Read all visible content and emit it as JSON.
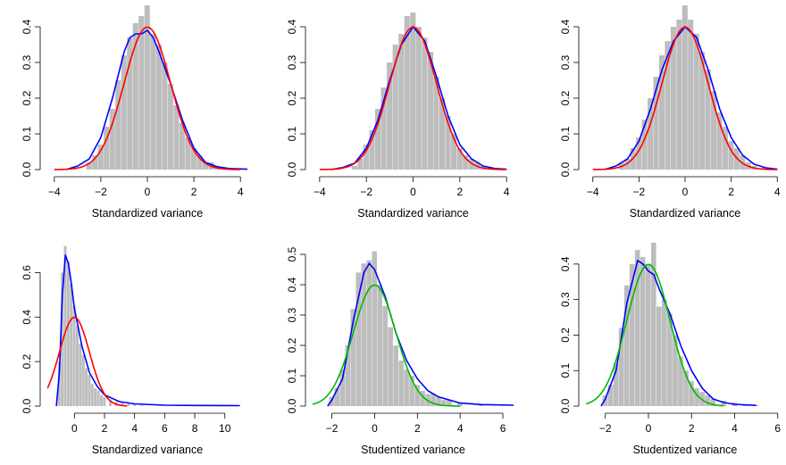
{
  "colors": {
    "histogram": "#bdbdbd",
    "density_estimate": "#0000ff",
    "normal_reference": "#ff0000",
    "normal_reference_studentized": "#00bb00",
    "axis": "#000000"
  },
  "chart_data": [
    {
      "type": "histogram",
      "xlabel": "Standardized variance",
      "xlim": [
        -4.3,
        4.3
      ],
      "ylim": [
        0,
        0.45
      ],
      "xticks": [
        -4,
        -2,
        0,
        2,
        4
      ],
      "yticks": [
        0.0,
        0.1,
        0.2,
        0.3,
        0.4
      ],
      "xtick_labels": [
        "−4",
        "−2",
        "0",
        "2",
        "4"
      ],
      "ytick_labels": [
        "0.0",
        "0.1",
        "0.2",
        "0.3",
        "0.4"
      ],
      "hist": {
        "x": [
          -2.5,
          -2.25,
          -2.0,
          -1.75,
          -1.5,
          -1.25,
          -1.0,
          -0.75,
          -0.5,
          -0.25,
          0.0,
          0.25,
          0.5,
          0.75,
          1.0,
          1.25,
          1.5,
          1.75,
          2.0,
          2.25,
          2.5,
          2.75,
          3.0,
          3.5,
          4.0
        ],
        "y": [
          0.02,
          0.04,
          0.07,
          0.12,
          0.17,
          0.25,
          0.32,
          0.37,
          0.41,
          0.43,
          0.46,
          0.38,
          0.35,
          0.3,
          0.24,
          0.18,
          0.13,
          0.09,
          0.06,
          0.04,
          0.02,
          0.02,
          0.01,
          0.005,
          0.003
        ]
      },
      "series": [
        {
          "kind": "density",
          "color": "density_estimate",
          "x": [
            -3.5,
            -3.0,
            -2.5,
            -2.0,
            -1.5,
            -1.0,
            -0.75,
            -0.5,
            -0.25,
            0.0,
            0.25,
            0.5,
            1.0,
            1.5,
            2.0,
            2.5,
            3.0,
            3.5,
            4.3
          ],
          "y": [
            0.0,
            0.01,
            0.03,
            0.09,
            0.2,
            0.33,
            0.37,
            0.38,
            0.38,
            0.39,
            0.37,
            0.33,
            0.24,
            0.14,
            0.06,
            0.02,
            0.008,
            0.003,
            0.001
          ]
        },
        {
          "kind": "normal",
          "color": "normal_reference",
          "mean": 0,
          "sd": 1,
          "from": -4,
          "to": 4
        }
      ]
    },
    {
      "type": "histogram",
      "xlabel": "Standardized variance",
      "xlim": [
        -4.3,
        4.3
      ],
      "ylim": [
        0,
        0.45
      ],
      "xticks": [
        -4,
        -2,
        0,
        2,
        4
      ],
      "yticks": [
        0.0,
        0.1,
        0.2,
        0.3,
        0.4
      ],
      "xtick_labels": [
        "−4",
        "−2",
        "0",
        "2",
        "4"
      ],
      "ytick_labels": [
        "0.0",
        "0.1",
        "0.2",
        "0.3",
        "0.4"
      ],
      "hist": {
        "x": [
          -2.5,
          -2.25,
          -2.0,
          -1.75,
          -1.5,
          -1.25,
          -1.0,
          -0.75,
          -0.5,
          -0.25,
          0.0,
          0.25,
          0.5,
          0.75,
          1.0,
          1.25,
          1.5,
          1.75,
          2.0,
          2.25,
          2.5,
          2.75,
          3.0,
          3.25,
          3.5
        ],
        "y": [
          0.01,
          0.03,
          0.07,
          0.11,
          0.17,
          0.23,
          0.3,
          0.35,
          0.38,
          0.43,
          0.44,
          0.4,
          0.37,
          0.33,
          0.26,
          0.2,
          0.15,
          0.1,
          0.06,
          0.04,
          0.03,
          0.02,
          0.01,
          0.008,
          0.005
        ]
      },
      "series": [
        {
          "kind": "density",
          "color": "density_estimate",
          "x": [
            -3.5,
            -3.0,
            -2.5,
            -2.0,
            -1.5,
            -1.0,
            -0.5,
            0.0,
            0.5,
            1.0,
            1.5,
            2.0,
            2.5,
            3.0,
            3.5,
            4.0
          ],
          "y": [
            0.0,
            0.006,
            0.018,
            0.06,
            0.14,
            0.25,
            0.35,
            0.4,
            0.36,
            0.26,
            0.15,
            0.07,
            0.03,
            0.01,
            0.003,
            0.001
          ]
        },
        {
          "kind": "normal",
          "color": "normal_reference",
          "mean": 0,
          "sd": 1,
          "from": -4,
          "to": 4
        }
      ]
    },
    {
      "type": "histogram",
      "xlabel": "Standardized variance",
      "xlim": [
        -4.3,
        4.3
      ],
      "ylim": [
        0,
        0.45
      ],
      "xticks": [
        -4,
        -2,
        0,
        2,
        4
      ],
      "yticks": [
        0.0,
        0.1,
        0.2,
        0.3,
        0.4
      ],
      "xtick_labels": [
        "−4",
        "−2",
        "0",
        "2",
        "4"
      ],
      "ytick_labels": [
        "0.0",
        "0.1",
        "0.2",
        "0.3",
        "0.4"
      ],
      "hist": {
        "x": [
          -2.75,
          -2.5,
          -2.25,
          -2.0,
          -1.75,
          -1.5,
          -1.25,
          -1.0,
          -0.75,
          -0.5,
          -0.25,
          0.0,
          0.25,
          0.5,
          0.75,
          1.0,
          1.25,
          1.5,
          1.75,
          2.0,
          2.25,
          2.5,
          2.75,
          3.0,
          3.5
        ],
        "y": [
          0.02,
          0.03,
          0.06,
          0.09,
          0.14,
          0.2,
          0.26,
          0.32,
          0.36,
          0.4,
          0.42,
          0.46,
          0.42,
          0.38,
          0.33,
          0.28,
          0.22,
          0.16,
          0.12,
          0.08,
          0.06,
          0.04,
          0.02,
          0.01,
          0.005
        ]
      },
      "series": [
        {
          "kind": "density",
          "color": "density_estimate",
          "x": [
            -3.5,
            -3.0,
            -2.5,
            -2.0,
            -1.5,
            -1.0,
            -0.5,
            0.0,
            0.5,
            1.0,
            1.5,
            2.0,
            2.5,
            3.0,
            3.5,
            4.0
          ],
          "y": [
            0.0,
            0.01,
            0.03,
            0.08,
            0.17,
            0.28,
            0.36,
            0.4,
            0.37,
            0.28,
            0.17,
            0.09,
            0.04,
            0.015,
            0.005,
            0.001
          ]
        },
        {
          "kind": "normal",
          "color": "normal_reference",
          "mean": 0,
          "sd": 1,
          "from": -4,
          "to": 4
        }
      ]
    },
    {
      "type": "histogram",
      "xlabel": "Standardized variance",
      "xlim": [
        -1.8,
        11.5
      ],
      "ylim": [
        0,
        0.75
      ],
      "xticks": [
        0,
        2,
        4,
        6,
        8,
        10
      ],
      "yticks": [
        0.0,
        0.2,
        0.4,
        0.6
      ],
      "xtick_labels": [
        "0",
        "2",
        "4",
        "6",
        "8",
        "10"
      ],
      "ytick_labels": [
        "0.0",
        "0.2",
        "0.4",
        "0.6"
      ],
      "hist": {
        "x": [
          -1.0,
          -0.8,
          -0.6,
          -0.4,
          -0.2,
          0.0,
          0.2,
          0.4,
          0.6,
          0.8,
          1.0,
          1.2,
          1.4,
          1.6,
          1.8,
          2.0,
          2.4,
          2.8,
          3.2,
          3.6,
          4.0,
          4.5
        ],
        "y": [
          0.2,
          0.6,
          0.72,
          0.65,
          0.55,
          0.45,
          0.36,
          0.28,
          0.23,
          0.17,
          0.14,
          0.1,
          0.08,
          0.07,
          0.05,
          0.04,
          0.03,
          0.02,
          0.015,
          0.01,
          0.01,
          0.005
        ]
      },
      "series": [
        {
          "kind": "density",
          "color": "density_estimate",
          "x": [
            -1.2,
            -1.0,
            -0.8,
            -0.6,
            -0.4,
            -0.2,
            0.0,
            0.5,
            1.0,
            1.5,
            2.0,
            3.0,
            4.0,
            6.0,
            8.0,
            11.0
          ],
          "y": [
            0.0,
            0.15,
            0.5,
            0.68,
            0.64,
            0.55,
            0.44,
            0.27,
            0.15,
            0.09,
            0.05,
            0.02,
            0.01,
            0.004,
            0.003,
            0.002
          ]
        },
        {
          "kind": "normal",
          "color": "normal_reference",
          "mean": 0,
          "sd": 1,
          "from": -1.8,
          "to": 3.5
        }
      ]
    },
    {
      "type": "histogram",
      "xlabel": "Studentized variance",
      "xlim": [
        -2.9,
        6.5
      ],
      "ylim": [
        0,
        0.55
      ],
      "xticks": [
        -2,
        0,
        2,
        4,
        6
      ],
      "yticks": [
        0.0,
        0.1,
        0.2,
        0.3,
        0.4,
        0.5
      ],
      "xtick_labels": [
        "−2",
        "0",
        "2",
        "4",
        "6"
      ],
      "ytick_labels": [
        "0.0",
        "0.1",
        "0.2",
        "0.3",
        "0.4",
        "0.5"
      ],
      "hist": {
        "x": [
          -2.0,
          -1.75,
          -1.5,
          -1.25,
          -1.0,
          -0.75,
          -0.5,
          -0.25,
          0.0,
          0.25,
          0.5,
          0.75,
          1.0,
          1.25,
          1.5,
          1.75,
          2.0,
          2.25,
          2.5,
          2.75,
          3.0,
          3.25,
          3.5,
          4.0,
          5.0
        ],
        "y": [
          0.03,
          0.06,
          0.12,
          0.2,
          0.32,
          0.44,
          0.47,
          0.48,
          0.51,
          0.4,
          0.33,
          0.26,
          0.2,
          0.15,
          0.12,
          0.1,
          0.07,
          0.05,
          0.04,
          0.04,
          0.03,
          0.02,
          0.02,
          0.01,
          0.005
        ]
      },
      "series": [
        {
          "kind": "density",
          "color": "density_estimate",
          "x": [
            -2.2,
            -2.0,
            -1.5,
            -1.0,
            -0.5,
            -0.25,
            0.0,
            0.5,
            1.0,
            1.5,
            2.0,
            2.5,
            3.0,
            3.5,
            4.0,
            5.0,
            6.5
          ],
          "y": [
            0.0,
            0.02,
            0.09,
            0.28,
            0.44,
            0.47,
            0.45,
            0.36,
            0.24,
            0.15,
            0.09,
            0.05,
            0.03,
            0.02,
            0.01,
            0.005,
            0.003
          ]
        },
        {
          "kind": "normal",
          "color": "normal_reference_studentized",
          "mean": 0,
          "sd": 1,
          "from": -2.9,
          "to": 4.0
        }
      ]
    },
    {
      "type": "histogram",
      "xlabel": "Studentized variance",
      "xlim": [
        -2.9,
        6.3
      ],
      "ylim": [
        0,
        0.47
      ],
      "xticks": [
        -2,
        0,
        2,
        4,
        6
      ],
      "yticks": [
        0.0,
        0.1,
        0.2,
        0.3,
        0.4
      ],
      "xtick_labels": [
        "−2",
        "0",
        "2",
        "4",
        "6"
      ],
      "ytick_labels": [
        "0.0",
        "0.1",
        "0.2",
        "0.3",
        "0.4"
      ],
      "hist": {
        "x": [
          -2.0,
          -1.75,
          -1.5,
          -1.25,
          -1.0,
          -0.75,
          -0.5,
          -0.25,
          0.0,
          0.25,
          0.5,
          0.75,
          1.0,
          1.25,
          1.5,
          1.75,
          2.0,
          2.25,
          2.5,
          2.75,
          3.0,
          3.5,
          4.0,
          4.5,
          5.0
        ],
        "y": [
          0.03,
          0.06,
          0.12,
          0.22,
          0.34,
          0.4,
          0.44,
          0.42,
          0.4,
          0.46,
          0.28,
          0.3,
          0.26,
          0.2,
          0.14,
          0.1,
          0.07,
          0.05,
          0.04,
          0.03,
          0.02,
          0.015,
          0.01,
          0.005,
          0.003
        ]
      },
      "series": [
        {
          "kind": "density",
          "color": "density_estimate",
          "x": [
            -2.2,
            -2.0,
            -1.5,
            -1.0,
            -0.5,
            -0.25,
            0.0,
            0.25,
            0.5,
            1.0,
            1.5,
            2.0,
            2.5,
            3.0,
            3.5,
            4.0,
            5.0
          ],
          "y": [
            0.0,
            0.02,
            0.1,
            0.29,
            0.41,
            0.4,
            0.38,
            0.37,
            0.33,
            0.26,
            0.17,
            0.1,
            0.05,
            0.02,
            0.01,
            0.005,
            0.002
          ]
        },
        {
          "kind": "normal",
          "color": "normal_reference_studentized",
          "mean": 0,
          "sd": 1,
          "from": -2.9,
          "to": 3.5
        }
      ]
    }
  ]
}
